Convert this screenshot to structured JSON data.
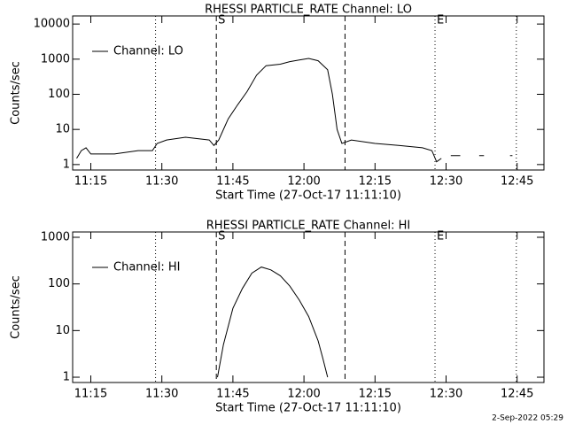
{
  "chart_data": [
    {
      "type": "line",
      "title": "RHESSI PARTICLE_RATE Channel: LO",
      "xlabel": "Start Time (27-Oct-17 11:11:10)",
      "ylabel": "Counts/sec",
      "log_scale": true,
      "legend": "upper left",
      "color": "#000000",
      "xlim": [
        "11:11:10",
        "12:50:40"
      ],
      "xticks": [
        "11:15",
        "11:30",
        "11:45",
        "12:00",
        "12:15",
        "12:30",
        "12:45"
      ],
      "ylim": [
        0.7,
        17000
      ],
      "yticks": [
        1,
        10,
        100,
        1000,
        10000
      ],
      "markers": [
        {
          "x": "11:28:40",
          "style": "dotted"
        },
        {
          "x": "11:41:30",
          "style": "dashed",
          "label": "S"
        },
        {
          "x": "12:08:40",
          "style": "dashed"
        },
        {
          "x": "12:27:40",
          "style": "dotted",
          "label": "E"
        },
        {
          "x": "12:44:50",
          "style": "dotted"
        }
      ],
      "x": [
        "11:12",
        "11:13",
        "11:14",
        "11:15",
        "11:20",
        "11:25",
        "11:28",
        "11:29",
        "11:31",
        "11:35",
        "11:40",
        "11:41",
        "11:42",
        "11:44",
        "11:46",
        "11:48",
        "11:50",
        "11:52",
        "11:55",
        "11:57",
        "11:59",
        "12:01",
        "12:03",
        "12:05",
        "12:06",
        "12:07",
        "12:08",
        "12:10",
        "12:15",
        "12:20",
        "12:25",
        "12:27",
        "12:28",
        "12:29",
        "12:30",
        "12:31",
        "12:33",
        "12:34",
        "12:37",
        "12:38",
        "12:39",
        "12:43:30",
        "12:44"
      ],
      "series": [
        {
          "name": "Channel: LO",
          "color": "#000000",
          "values": [
            1.5,
            2.5,
            3,
            2,
            2,
            2.5,
            2.5,
            4,
            5,
            6,
            5,
            3.5,
            5,
            20,
            50,
            120,
            350,
            650,
            720,
            850,
            950,
            1050,
            900,
            500,
            100,
            10,
            4,
            5,
            4,
            3.5,
            3,
            2.5,
            1.2,
            1.5,
            null,
            1.8,
            1.8,
            null,
            1.8,
            1.8,
            null,
            1.8,
            1.8
          ]
        }
      ]
    },
    {
      "type": "line",
      "title": "RHESSI PARTICLE_RATE Channel: HI",
      "xlabel": "Start Time (27-Oct-17 11:11:10)",
      "ylabel": "Counts/sec",
      "log_scale": true,
      "legend": "upper left",
      "color": "#000000",
      "xlim": [
        "11:11:10",
        "12:50:40"
      ],
      "xticks": [
        "11:15",
        "11:30",
        "11:45",
        "12:00",
        "12:15",
        "12:30",
        "12:45"
      ],
      "ylim": [
        0.77,
        1300
      ],
      "yticks": [
        1,
        10,
        100,
        1000
      ],
      "markers": [
        {
          "x": "11:28:40",
          "style": "dotted"
        },
        {
          "x": "11:41:30",
          "style": "dashed",
          "label": "S"
        },
        {
          "x": "12:08:40",
          "style": "dashed"
        },
        {
          "x": "12:27:40",
          "style": "dotted",
          "label": "E"
        },
        {
          "x": "12:44:50",
          "style": "dotted"
        }
      ],
      "x": [
        "11:41:45",
        "11:43",
        "11:45",
        "11:47",
        "11:49",
        "11:51",
        "11:53",
        "11:55",
        "11:57",
        "11:59",
        "12:01",
        "12:03",
        "12:04",
        "12:05"
      ],
      "series": [
        {
          "name": "Channel: HI",
          "color": "#000000",
          "values": [
            1,
            5,
            30,
            80,
            170,
            230,
            200,
            150,
            90,
            45,
            20,
            6,
            2.5,
            1
          ]
        }
      ]
    }
  ],
  "footer": "2-Sep-2022 05:29"
}
